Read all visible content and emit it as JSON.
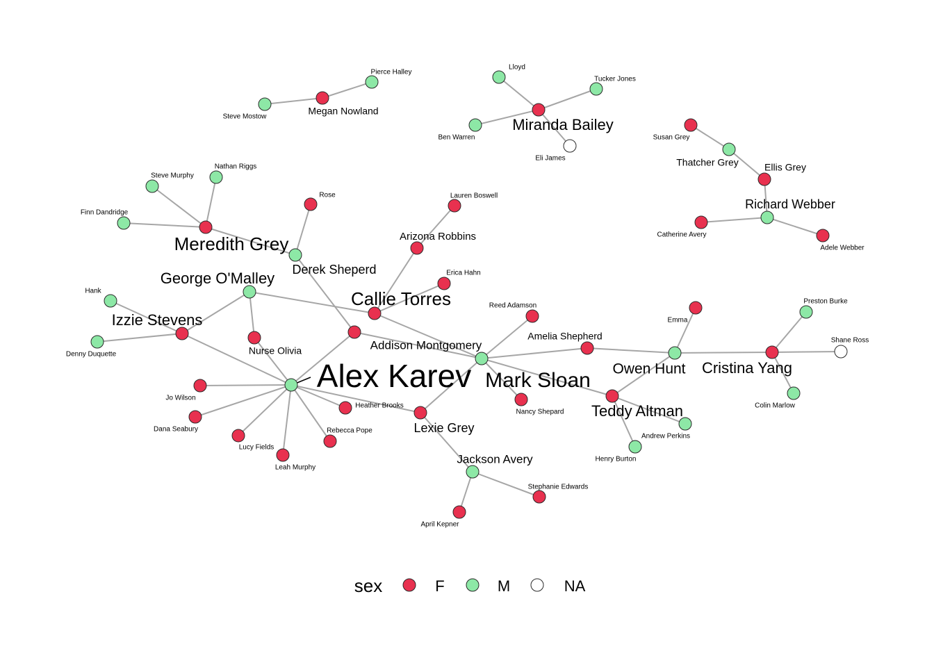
{
  "legend": {
    "title": "sex",
    "items": [
      {
        "label": "F",
        "color": "#e8314f"
      },
      {
        "label": "M",
        "color": "#8de8a6"
      },
      {
        "label": "NA",
        "color": "#ffffff"
      }
    ]
  },
  "nodes": [
    {
      "id": "Alex Karev",
      "sex": "M"
    },
    {
      "id": "Mark Sloan",
      "sex": "M"
    },
    {
      "id": "Callie Torres",
      "sex": "F"
    },
    {
      "id": "George O'Malley",
      "sex": "M"
    },
    {
      "id": "Meredith Grey",
      "sex": "F"
    },
    {
      "id": "Derek Sheperd",
      "sex": "M"
    },
    {
      "id": "Izzie Stevens",
      "sex": "F"
    },
    {
      "id": "Addison Montgomery",
      "sex": "F"
    },
    {
      "id": "Arizona Robbins",
      "sex": "F"
    },
    {
      "id": "Lexie Grey",
      "sex": "F"
    },
    {
      "id": "Jackson Avery",
      "sex": "M"
    },
    {
      "id": "Owen Hunt",
      "sex": "M"
    },
    {
      "id": "Cristina Yang",
      "sex": "F"
    },
    {
      "id": "Teddy Altman",
      "sex": "F"
    },
    {
      "id": "Amelia Shepherd",
      "sex": "F"
    },
    {
      "id": "Miranda Bailey",
      "sex": "F"
    },
    {
      "id": "Richard Webber",
      "sex": "M"
    },
    {
      "id": "Ellis Grey",
      "sex": "F"
    },
    {
      "id": "Thatcher Grey",
      "sex": "M"
    },
    {
      "id": "Megan Nowland",
      "sex": "F"
    },
    {
      "id": "Nurse Olivia",
      "sex": "F"
    },
    {
      "id": "Steve Mostow",
      "sex": "M"
    },
    {
      "id": "Pierce Halley",
      "sex": "M"
    },
    {
      "id": "Lloyd",
      "sex": "M"
    },
    {
      "id": "Tucker Jones",
      "sex": "M"
    },
    {
      "id": "Ben Warren",
      "sex": "M"
    },
    {
      "id": "Eli James",
      "sex": "NA"
    },
    {
      "id": "Susan Grey",
      "sex": "F"
    },
    {
      "id": "Catherine Avery",
      "sex": "F"
    },
    {
      "id": "Adele Webber",
      "sex": "F"
    },
    {
      "id": "Steve Murphy",
      "sex": "M"
    },
    {
      "id": "Nathan Riggs",
      "sex": "M"
    },
    {
      "id": "Finn Dandridge",
      "sex": "M"
    },
    {
      "id": "Rose",
      "sex": "F"
    },
    {
      "id": "Lauren Boswell",
      "sex": "F"
    },
    {
      "id": "Erica Hahn",
      "sex": "F"
    },
    {
      "id": "Hank",
      "sex": "M"
    },
    {
      "id": "Denny Duquette",
      "sex": "M"
    },
    {
      "id": "Reed Adamson",
      "sex": "F"
    },
    {
      "id": "Emma",
      "sex": "F"
    },
    {
      "id": "Preston Burke",
      "sex": "M"
    },
    {
      "id": "Shane Ross",
      "sex": "NA"
    },
    {
      "id": "Colin Marlow",
      "sex": "M"
    },
    {
      "id": "Jo Wilson",
      "sex": "F"
    },
    {
      "id": "Dana Seabury",
      "sex": "F"
    },
    {
      "id": "Lucy Fields",
      "sex": "F"
    },
    {
      "id": "Leah Murphy",
      "sex": "F"
    },
    {
      "id": "Rebecca Pope",
      "sex": "F"
    },
    {
      "id": "Heather Brooks",
      "sex": "F"
    },
    {
      "id": "Nancy Shepard",
      "sex": "F"
    },
    {
      "id": "Andrew Perkins",
      "sex": "M"
    },
    {
      "id": "Henry Burton",
      "sex": "M"
    },
    {
      "id": "Stephanie Edwards",
      "sex": "F"
    },
    {
      "id": "April Kepner",
      "sex": "F"
    }
  ],
  "edges": [
    [
      "Steve Mostow",
      "Megan Nowland"
    ],
    [
      "Megan Nowland",
      "Pierce Halley"
    ],
    [
      "Lloyd",
      "Miranda Bailey"
    ],
    [
      "Tucker Jones",
      "Miranda Bailey"
    ],
    [
      "Ben Warren",
      "Miranda Bailey"
    ],
    [
      "Eli James",
      "Miranda Bailey"
    ],
    [
      "Susan Grey",
      "Thatcher Grey"
    ],
    [
      "Thatcher Grey",
      "Ellis Grey"
    ],
    [
      "Ellis Grey",
      "Richard Webber"
    ],
    [
      "Catherine Avery",
      "Richard Webber"
    ],
    [
      "Adele Webber",
      "Richard Webber"
    ],
    [
      "Steve Murphy",
      "Meredith Grey"
    ],
    [
      "Nathan Riggs",
      "Meredith Grey"
    ],
    [
      "Finn Dandridge",
      "Meredith Grey"
    ],
    [
      "Meredith Grey",
      "Derek Sheperd"
    ],
    [
      "Rose",
      "Derek Sheperd"
    ],
    [
      "Derek Sheperd",
      "Addison Montgomery"
    ],
    [
      "Lauren Boswell",
      "Arizona Robbins"
    ],
    [
      "Arizona Robbins",
      "Callie Torres"
    ],
    [
      "Erica Hahn",
      "Callie Torres"
    ],
    [
      "George O'Malley",
      "Callie Torres"
    ],
    [
      "George O'Malley",
      "Izzie Stevens"
    ],
    [
      "George O'Malley",
      "Nurse Olivia"
    ],
    [
      "Callie Torres",
      "Mark Sloan"
    ],
    [
      "Hank",
      "Izzie Stevens"
    ],
    [
      "Denny Duquette",
      "Izzie Stevens"
    ],
    [
      "Izzie Stevens",
      "Alex Karev"
    ],
    [
      "Nurse Olivia",
      "Alex Karev"
    ],
    [
      "Addison Montgomery",
      "Alex Karev"
    ],
    [
      "Addison Montgomery",
      "Mark Sloan"
    ],
    [
      "Jo Wilson",
      "Alex Karev"
    ],
    [
      "Dana Seabury",
      "Alex Karev"
    ],
    [
      "Lucy Fields",
      "Alex Karev"
    ],
    [
      "Leah Murphy",
      "Alex Karev"
    ],
    [
      "Rebecca Pope",
      "Alex Karev"
    ],
    [
      "Heather Brooks",
      "Alex Karev"
    ],
    [
      "Lexie Grey",
      "Alex Karev"
    ],
    [
      "Lexie Grey",
      "Mark Sloan"
    ],
    [
      "Lexie Grey",
      "Jackson Avery"
    ],
    [
      "Jackson Avery",
      "April Kepner"
    ],
    [
      "Jackson Avery",
      "Stephanie Edwards"
    ],
    [
      "Reed Adamson",
      "Mark Sloan"
    ],
    [
      "Nancy Shepard",
      "Mark Sloan"
    ],
    [
      "Mark Sloan",
      "Amelia Shepherd"
    ],
    [
      "Mark Sloan",
      "Teddy Altman"
    ],
    [
      "Amelia Shepherd",
      "Owen Hunt"
    ],
    [
      "Emma",
      "Owen Hunt"
    ],
    [
      "Owen Hunt",
      "Teddy Altman"
    ],
    [
      "Owen Hunt",
      "Cristina Yang"
    ],
    [
      "Teddy Altman",
      "Andrew Perkins"
    ],
    [
      "Teddy Altman",
      "Henry Burton"
    ],
    [
      "Cristina Yang",
      "Preston Burke"
    ],
    [
      "Cristina Yang",
      "Shane Ross"
    ],
    [
      "Cristina Yang",
      "Colin Marlow"
    ]
  ]
}
